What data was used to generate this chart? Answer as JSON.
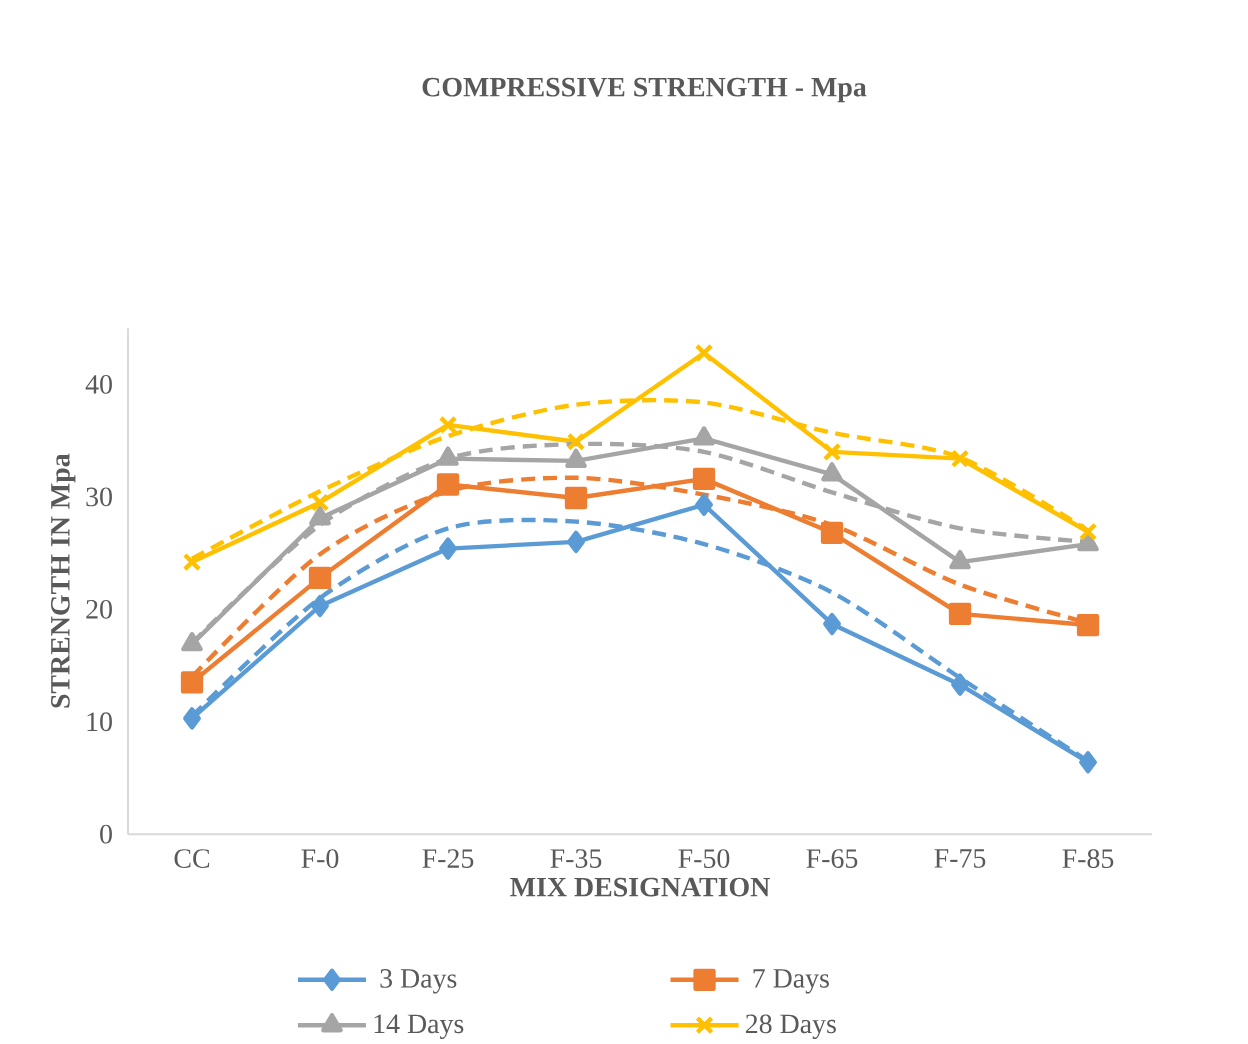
{
  "chart_data": {
    "type": "line",
    "title": "COMPRESSIVE STRENGTH - Mpa",
    "xlabel": "MIX DESIGNATION",
    "ylabel": "STRENGTH IN Mpa",
    "categories": [
      "CC",
      "F-0",
      "F-25",
      "F-35",
      "F-50",
      "F-65",
      "F-75",
      "F-85"
    ],
    "ylim": [
      0,
      45
    ],
    "yticks": [
      0,
      10,
      20,
      30,
      40
    ],
    "grid": false,
    "legend": "bottom",
    "series": [
      {
        "name": "3 Days",
        "color": "#5b9bd5",
        "marker": "diamond",
        "line_style": "solid",
        "values": [
          10.3,
          20.3,
          25.4,
          26,
          29.3,
          18.7,
          13.3,
          6.4
        ]
      },
      {
        "name": "7 Days",
        "color": "#ed7d31",
        "marker": "square",
        "line_style": "solid",
        "values": [
          13.5,
          22.8,
          31.1,
          29.9,
          31.6,
          26.8,
          19.6,
          18.6
        ]
      },
      {
        "name": "14 Days",
        "color": "#a5a5a5",
        "marker": "triangle",
        "line_style": "solid",
        "values": [
          16.9,
          28.1,
          33.4,
          33.2,
          35.2,
          32,
          24.2,
          25.8
        ]
      },
      {
        "name": "28 Days",
        "color": "#ffc000",
        "marker": "cross",
        "line_style": "solid",
        "values": [
          24.2,
          29.5,
          36.4,
          34.9,
          42.8,
          34,
          33.4,
          26.9
        ]
      },
      {
        "color": "#5b9bd5",
        "marker": "none",
        "line_style": "dashed",
        "values": [
          10.5,
          21,
          27.2,
          27.8,
          25.8,
          21.5,
          13.9,
          6.5
        ]
      },
      {
        "color": "#ed7d31",
        "marker": "none",
        "line_style": "dashed",
        "values": [
          14,
          24.9,
          30.5,
          31.7,
          30.2,
          27.5,
          22.2,
          18.8
        ]
      },
      {
        "color": "#a5a5a5",
        "marker": "none",
        "line_style": "dashed",
        "values": [
          17,
          27.5,
          33.4,
          34.7,
          34,
          30.4,
          27.2,
          26
        ]
      },
      {
        "color": "#ffc000",
        "marker": "none",
        "line_style": "dashed",
        "values": [
          24.5,
          30.5,
          35.4,
          38.2,
          38.4,
          35.7,
          33.5,
          27
        ]
      }
    ]
  }
}
